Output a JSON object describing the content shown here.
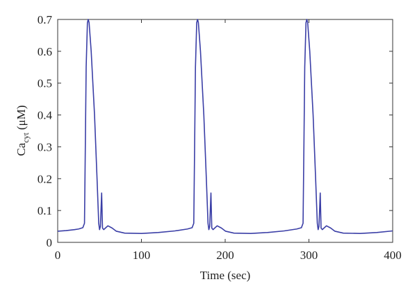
{
  "chart_data": {
    "type": "line",
    "x_label": "Time (sec)",
    "y_label": {
      "base": "Ca",
      "subscript": "cyt",
      "unit": "(μM)"
    },
    "xlim": [
      0,
      400
    ],
    "xticks": [
      0,
      100,
      200,
      300,
      400
    ],
    "ylim": [
      0,
      0.7
    ],
    "yticks": [
      0,
      0.1,
      0.2,
      0.3,
      0.4,
      0.5,
      0.6,
      0.7
    ],
    "grid": false,
    "x": [
      0,
      10,
      20,
      25,
      30,
      32,
      33,
      34,
      35.5,
      36.5,
      37.5,
      40,
      44,
      47,
      49,
      50,
      51,
      52.5,
      53.5,
      55,
      57,
      60,
      65,
      70,
      80,
      100,
      120,
      140,
      155,
      160.5,
      162.5,
      163.5,
      164.5,
      166,
      167,
      168,
      170.5,
      174.5,
      177.5,
      179.5,
      180.5,
      181.5,
      183,
      184,
      185.5,
      187.5,
      190.5,
      195.5,
      200.5,
      210.5,
      230.5,
      250.5,
      270.5,
      285.5,
      291,
      293,
      294,
      295,
      296.5,
      297.5,
      298.5,
      301,
      305,
      308,
      310,
      311,
      312,
      313.5,
      314.5,
      316,
      318,
      321,
      326,
      331,
      341,
      361,
      381,
      400
    ],
    "series": [
      {
        "color": "#3a3ea6",
        "values": [
          0.035,
          0.037,
          0.04,
          0.042,
          0.046,
          0.06,
          0.3,
          0.55,
          0.69,
          0.7,
          0.69,
          0.6,
          0.4,
          0.2,
          0.06,
          0.04,
          0.05,
          0.155,
          0.045,
          0.04,
          0.045,
          0.052,
          0.045,
          0.035,
          0.029,
          0.028,
          0.031,
          0.036,
          0.042,
          0.046,
          0.06,
          0.3,
          0.55,
          0.69,
          0.7,
          0.69,
          0.6,
          0.4,
          0.2,
          0.06,
          0.04,
          0.05,
          0.155,
          0.045,
          0.04,
          0.045,
          0.052,
          0.045,
          0.035,
          0.029,
          0.028,
          0.031,
          0.036,
          0.042,
          0.046,
          0.06,
          0.3,
          0.55,
          0.69,
          0.7,
          0.69,
          0.6,
          0.4,
          0.2,
          0.06,
          0.04,
          0.05,
          0.155,
          0.045,
          0.04,
          0.045,
          0.052,
          0.045,
          0.035,
          0.029,
          0.028,
          0.031,
          0.036
        ]
      }
    ]
  }
}
